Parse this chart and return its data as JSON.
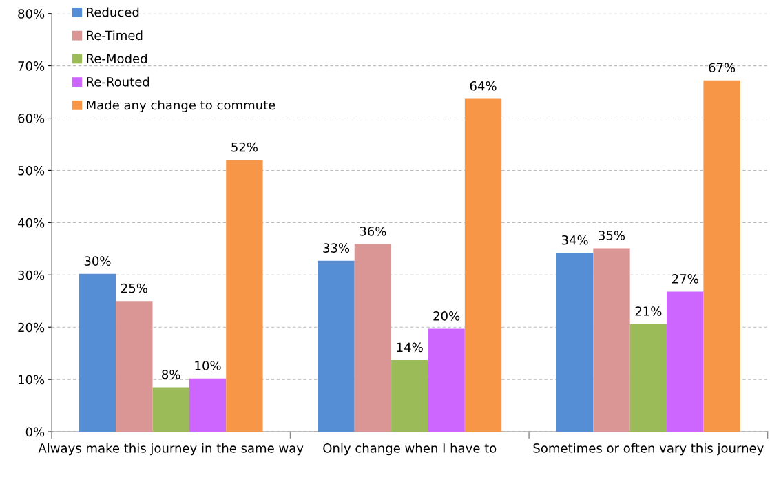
{
  "chart_data": {
    "type": "bar",
    "categories": [
      "Always make this journey in the same way",
      "Only change when I have to",
      "Sometimes or often vary this journey"
    ],
    "series": [
      {
        "name": "Reduced",
        "color": "#558ed5",
        "values": [
          30.2,
          32.7,
          34.2
        ],
        "value_labels": [
          "30%",
          "33%",
          "34%"
        ]
      },
      {
        "name": "Re-Timed",
        "color": "#d99694",
        "values": [
          25,
          35.9,
          35.1
        ],
        "value_labels": [
          "25%",
          "36%",
          "35%"
        ]
      },
      {
        "name": "Re-Moded",
        "color": "#9bbb59",
        "values": [
          8.5,
          13.7,
          20.6
        ],
        "value_labels": [
          "8%",
          "14%",
          "21%"
        ]
      },
      {
        "name": "Re-Routed",
        "color": "#cc66ff",
        "values": [
          10.2,
          19.7,
          26.8
        ],
        "value_labels": [
          "10%",
          "20%",
          "27%"
        ]
      },
      {
        "name": "Made any change to commute",
        "color": "#f79646",
        "values": [
          52,
          63.7,
          67.2
        ],
        "value_labels": [
          "52%",
          "64%",
          "67%"
        ]
      }
    ],
    "ylim": [
      0,
      80
    ],
    "yticks": [
      {
        "value": 0,
        "label": "0%"
      },
      {
        "value": 10,
        "label": "10%"
      },
      {
        "value": 20,
        "label": "20%"
      },
      {
        "value": 30,
        "label": "30%"
      },
      {
        "value": 40,
        "label": "40%"
      },
      {
        "value": 50,
        "label": "50%"
      },
      {
        "value": 60,
        "label": "60%"
      },
      {
        "value": 70,
        "label": "70%"
      },
      {
        "value": 80,
        "label": "80%"
      }
    ],
    "grid": "y",
    "legend": "top left"
  }
}
